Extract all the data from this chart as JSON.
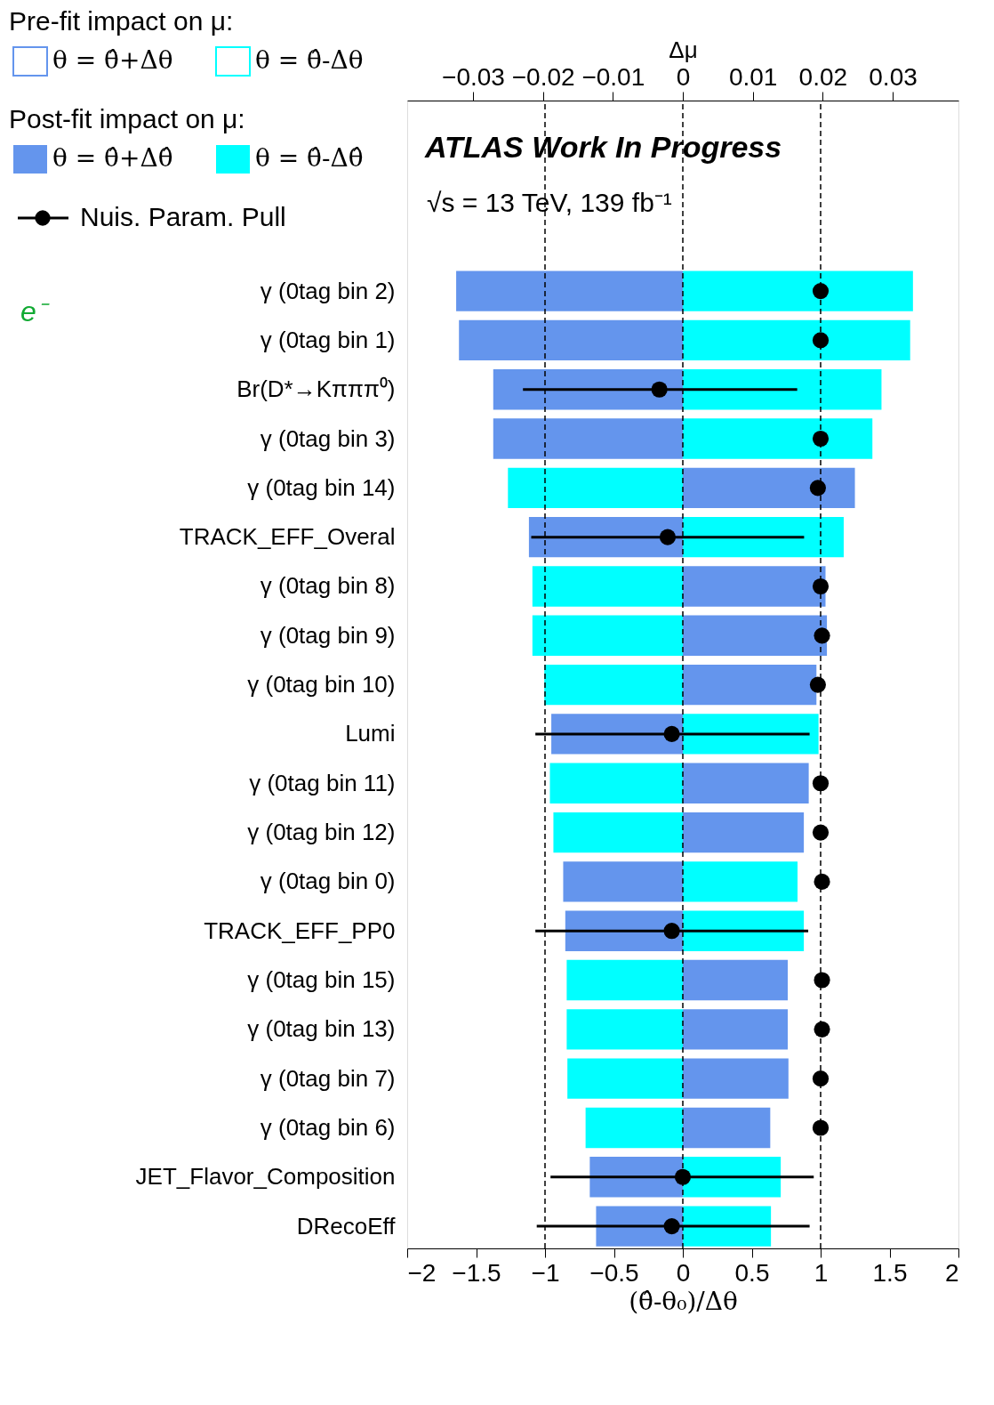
{
  "chart_data": {
    "type": "bar",
    "orientation": "horizontal",
    "xlabel": "(θ̂-θ₀)/Δθ",
    "x2label": "Δμ",
    "categories": [
      "γ (0tag bin 2)",
      "γ (0tag bin 1)",
      "Br(D*→Kπππ⁰)",
      "γ (0tag bin 3)",
      "γ (0tag bin 14)",
      "TRACK_EFF_Overal",
      "γ (0tag bin 8)",
      "γ (0tag bin 9)",
      "γ (0tag bin 10)",
      "Lumi",
      "γ (0tag bin 11)",
      "γ (0tag bin 12)",
      "γ (0tag bin 0)",
      "TRACK_EFF_PP0",
      "γ (0tag bin 15)",
      "γ (0tag bin 13)",
      "γ (0tag bin 7)",
      "γ (0tag bin 6)",
      "JET_Flavor_Composition",
      "DRecoEff"
    ],
    "xlim": [
      -2,
      2
    ],
    "xticks": [
      {
        "value": -2,
        "label": "−2"
      },
      {
        "value": -1.5,
        "label": "−1.5"
      },
      {
        "value": -1,
        "label": "−1"
      },
      {
        "value": -0.5,
        "label": "−0.5"
      },
      0,
      0.5,
      1,
      1.5,
      2
    ],
    "x2lim": [
      -0.0394,
      0.0394
    ],
    "x2ticks": [
      {
        "value": -0.03,
        "label": "−0.03"
      },
      {
        "value": -0.02,
        "label": "−0.02"
      },
      {
        "value": -0.01,
        "label": "−0.01"
      },
      0,
      0.01,
      0.02,
      0.03
    ],
    "series": [
      {
        "name": "θ = θ̂+Δθ",
        "color": "#6495ed",
        "values": [
          null,
          null,
          null,
          null,
          null,
          null,
          null,
          null,
          null,
          null,
          null,
          null,
          null,
          null,
          null,
          null,
          null,
          null,
          null,
          null
        ]
      },
      {
        "name": "θ = θ̂-Δθ",
        "color": "#00ffff",
        "values": [
          null,
          null,
          null,
          null,
          null,
          null,
          null,
          null,
          null,
          null,
          null,
          null,
          null,
          null,
          null,
          null,
          null,
          null,
          null,
          null
        ]
      },
      {
        "name": "θ = θ̂+Δθ̂",
        "axis": "x2",
        "color": "#6495ed",
        "values": [
          -0.0324,
          -0.032,
          -0.0271,
          -0.0271,
          0.0246,
          -0.022,
          0.0204,
          0.0206,
          0.0191,
          -0.0188,
          0.018,
          0.0173,
          -0.0171,
          -0.0168,
          0.015,
          0.015,
          0.0151,
          0.0125,
          -0.0133,
          -0.0124
        ]
      },
      {
        "name": "θ = θ̂-Δθ̂",
        "axis": "x2",
        "color": "#00ffff",
        "values": [
          0.0329,
          0.0325,
          0.0284,
          0.0271,
          -0.025,
          0.023,
          -0.0215,
          -0.0215,
          -0.0198,
          0.0194,
          -0.019,
          -0.0185,
          0.0164,
          0.0173,
          -0.0166,
          -0.0166,
          -0.0165,
          -0.0139,
          0.014,
          0.0126
        ]
      },
      {
        "name": "Nuis. Param. Pull",
        "type": "scatter",
        "color": "#000000",
        "values": [
          1.0,
          1.0,
          -0.17,
          1.0,
          0.98,
          -0.11,
          1.0,
          1.01,
          0.98,
          -0.08,
          1.0,
          1.0,
          1.01,
          -0.08,
          1.01,
          1.01,
          1.0,
          1.0,
          0.0,
          -0.08
        ],
        "errors": [
          null,
          null,
          [
            -1.16,
            0.83
          ],
          null,
          null,
          [
            -1.1,
            0.88
          ],
          null,
          null,
          null,
          [
            -1.07,
            0.92
          ],
          null,
          null,
          null,
          [
            -1.07,
            0.91
          ],
          null,
          null,
          null,
          null,
          [
            -0.96,
            0.95
          ],
          [
            -1.06,
            0.92
          ]
        ]
      }
    ],
    "ref_lines": [
      {
        "axis": "x",
        "value": -1,
        "line_style": "dashed"
      },
      {
        "axis": "x",
        "value": 0,
        "line_style": "dashed"
      },
      {
        "axis": "x",
        "value": 1,
        "line_style": "dashed"
      }
    ],
    "annotations": [
      "Pre-fit impact on μ:",
      "Post-fit impact on μ:",
      "ATLAS Work In Progress",
      "√s = 13 TeV, 139 fb⁻¹",
      "e⁻"
    ],
    "stacked": true,
    "marker": "circle",
    "legend": "top left",
    "grid": false
  }
}
